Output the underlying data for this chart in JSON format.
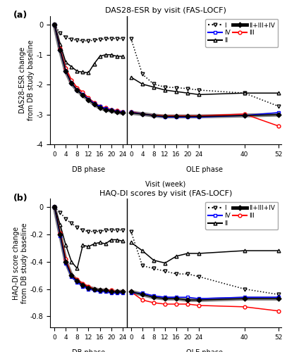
{
  "panel_a_title": "DAS28-ESR by visit (FAS-LOCF)",
  "panel_b_title": "HAQ-DI scores by visit (FAS-LOCF)",
  "ylabel_a": "DAS28-ESR change\nfrom DB study baseline",
  "ylabel_b": "HAQ-DI score change\nfrom DB study baseline",
  "xlabel": "Visit (week)",
  "db_phase_label": "DB phase",
  "ole_phase_label": "OLE phase",
  "das_ylim": [
    -4.0,
    0.3
  ],
  "das_yticks": [
    0,
    -1,
    -2,
    -3,
    -4
  ],
  "haq_ylim": [
    -0.88,
    0.06
  ],
  "haq_yticks": [
    0.0,
    -0.2,
    -0.4,
    -0.6,
    -0.8
  ],
  "das_db_I_x": [
    0,
    2,
    4,
    6,
    8,
    10,
    12,
    14,
    16,
    18,
    20,
    22,
    24
  ],
  "das_db_I_y": [
    0.0,
    -0.28,
    -0.42,
    -0.48,
    -0.52,
    -0.53,
    -0.54,
    -0.51,
    -0.49,
    -0.47,
    -0.46,
    -0.46,
    -0.46
  ],
  "das_db_II_x": [
    0,
    2,
    4,
    6,
    8,
    10,
    12,
    14,
    16,
    18,
    20,
    22,
    24
  ],
  "das_db_II_y": [
    0.0,
    -0.65,
    -1.25,
    -1.4,
    -1.55,
    -1.58,
    -1.6,
    -1.3,
    -1.05,
    -1.0,
    -1.0,
    -1.05,
    -1.05
  ],
  "das_db_III_x": [
    0,
    2,
    4,
    6,
    8,
    10,
    12,
    14,
    16,
    18,
    20,
    22,
    24
  ],
  "das_db_III_y": [
    0.0,
    -0.8,
    -1.45,
    -1.85,
    -2.1,
    -2.25,
    -2.45,
    -2.6,
    -2.72,
    -2.78,
    -2.83,
    -2.87,
    -2.9
  ],
  "das_db_IV_x": [
    0,
    2,
    4,
    6,
    8,
    10,
    12,
    14,
    16,
    18,
    20,
    22,
    24
  ],
  "das_db_IV_y": [
    0.0,
    -0.85,
    -1.55,
    -1.95,
    -2.18,
    -2.32,
    -2.48,
    -2.62,
    -2.73,
    -2.8,
    -2.85,
    -2.89,
    -2.92
  ],
  "das_db_C_x": [
    0,
    2,
    4,
    6,
    8,
    10,
    12,
    14,
    16,
    18,
    20,
    22,
    24
  ],
  "das_db_C_y": [
    0.0,
    -0.85,
    -1.55,
    -1.95,
    -2.18,
    -2.35,
    -2.5,
    -2.65,
    -2.77,
    -2.83,
    -2.87,
    -2.91,
    -2.94
  ],
  "das_ole_I_x": [
    0,
    4,
    8,
    12,
    16,
    20,
    24,
    40,
    52
  ],
  "das_ole_I_y": [
    -0.46,
    -1.65,
    -1.98,
    -2.08,
    -2.1,
    -2.13,
    -2.18,
    -2.28,
    -2.72
  ],
  "das_ole_II_x": [
    0,
    4,
    8,
    12,
    16,
    20,
    24,
    40,
    52
  ],
  "das_ole_II_y": [
    -1.75,
    -1.98,
    -2.08,
    -2.18,
    -2.23,
    -2.28,
    -2.33,
    -2.28,
    -2.28
  ],
  "das_ole_III_x": [
    0,
    4,
    8,
    12,
    16,
    20,
    24,
    40,
    52
  ],
  "das_ole_III_y": [
    -2.9,
    -2.98,
    -3.02,
    -3.04,
    -3.04,
    -3.04,
    -3.04,
    -2.98,
    -3.38
  ],
  "das_ole_IV_x": [
    0,
    4,
    8,
    12,
    16,
    20,
    24,
    40,
    52
  ],
  "das_ole_IV_y": [
    -2.92,
    -2.98,
    -3.03,
    -3.08,
    -3.08,
    -3.08,
    -3.08,
    -3.03,
    -2.93
  ],
  "das_ole_C_x": [
    0,
    4,
    8,
    12,
    16,
    20,
    24,
    40,
    52
  ],
  "das_ole_C_y": [
    -2.94,
    -2.98,
    -3.03,
    -3.06,
    -3.06,
    -3.06,
    -3.06,
    -3.03,
    -3.0
  ],
  "haq_db_I_x": [
    0,
    2,
    4,
    6,
    8,
    10,
    12,
    14,
    16,
    18,
    20,
    22,
    24
  ],
  "haq_db_I_y": [
    0.0,
    -0.04,
    -0.09,
    -0.12,
    -0.15,
    -0.17,
    -0.18,
    -0.18,
    -0.18,
    -0.17,
    -0.17,
    -0.17,
    -0.17
  ],
  "haq_db_II_x": [
    0,
    2,
    4,
    6,
    8,
    10,
    12,
    14,
    16,
    18,
    20,
    22,
    24
  ],
  "haq_db_II_y": [
    0.0,
    -0.13,
    -0.28,
    -0.4,
    -0.45,
    -0.28,
    -0.29,
    -0.27,
    -0.26,
    -0.27,
    -0.24,
    -0.24,
    -0.25
  ],
  "haq_db_III_x": [
    0,
    2,
    4,
    6,
    8,
    10,
    12,
    14,
    16,
    18,
    20,
    22,
    24
  ],
  "haq_db_III_y": [
    0.0,
    -0.19,
    -0.38,
    -0.5,
    -0.53,
    -0.56,
    -0.58,
    -0.6,
    -0.61,
    -0.61,
    -0.61,
    -0.62,
    -0.62
  ],
  "haq_db_IV_x": [
    0,
    2,
    4,
    6,
    8,
    10,
    12,
    14,
    16,
    18,
    20,
    22,
    24
  ],
  "haq_db_IV_y": [
    0.0,
    -0.21,
    -0.41,
    -0.51,
    -0.55,
    -0.58,
    -0.6,
    -0.61,
    -0.62,
    -0.62,
    -0.63,
    -0.63,
    -0.63
  ],
  "haq_db_C_x": [
    0,
    2,
    4,
    6,
    8,
    10,
    12,
    14,
    16,
    18,
    20,
    22,
    24
  ],
  "haq_db_C_y": [
    0.0,
    -0.2,
    -0.4,
    -0.5,
    -0.54,
    -0.57,
    -0.59,
    -0.6,
    -0.61,
    -0.61,
    -0.62,
    -0.62,
    -0.62
  ],
  "haq_ole_I_x": [
    0,
    4,
    8,
    12,
    16,
    20,
    24,
    40,
    52
  ],
  "haq_ole_I_y": [
    -0.18,
    -0.43,
    -0.45,
    -0.47,
    -0.49,
    -0.49,
    -0.51,
    -0.6,
    -0.64
  ],
  "haq_ole_II_x": [
    0,
    4,
    8,
    12,
    16,
    20,
    24,
    40,
    52
  ],
  "haq_ole_II_y": [
    -0.26,
    -0.32,
    -0.39,
    -0.41,
    -0.36,
    -0.34,
    -0.34,
    -0.32,
    -0.32
  ],
  "haq_ole_III_x": [
    0,
    4,
    8,
    12,
    16,
    20,
    24,
    40,
    52
  ],
  "haq_ole_III_y": [
    -0.62,
    -0.68,
    -0.7,
    -0.71,
    -0.71,
    -0.71,
    -0.72,
    -0.73,
    -0.76
  ],
  "haq_ole_IV_x": [
    0,
    4,
    8,
    12,
    16,
    20,
    24,
    40,
    52
  ],
  "haq_ole_IV_y": [
    -0.63,
    -0.63,
    -0.65,
    -0.66,
    -0.66,
    -0.66,
    -0.67,
    -0.66,
    -0.66
  ],
  "haq_ole_C_x": [
    0,
    4,
    8,
    12,
    16,
    20,
    24,
    40,
    52
  ],
  "haq_ole_C_y": [
    -0.62,
    -0.64,
    -0.66,
    -0.67,
    -0.67,
    -0.68,
    -0.68,
    -0.67,
    -0.67
  ]
}
